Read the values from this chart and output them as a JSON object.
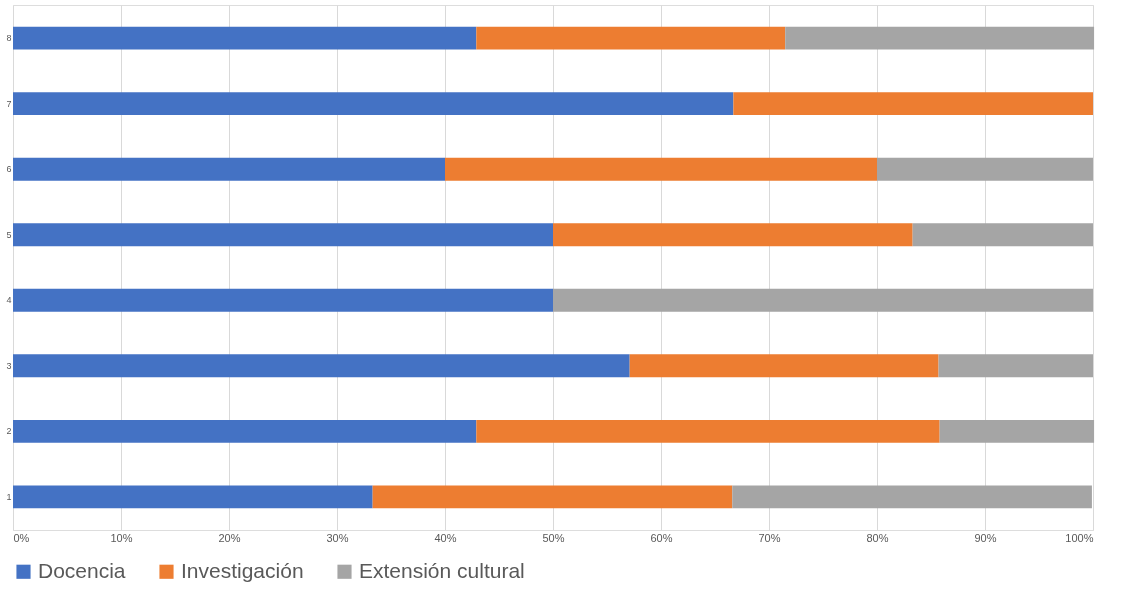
{
  "chart_data": {
    "type": "bar",
    "orientation": "horizontal",
    "stacked": true,
    "categories": [
      "8",
      "7",
      "6",
      "5",
      "4",
      "3",
      "2",
      "1"
    ],
    "series": [
      {
        "name": "Docencia",
        "color": "#4472c4",
        "values": [
          42.9,
          66.7,
          40,
          50,
          50,
          57.1,
          42.9,
          33.3
        ]
      },
      {
        "name": "Investigación",
        "color": "#ed7d31",
        "values": [
          28.6,
          33.3,
          40,
          33.3,
          0,
          28.6,
          42.9,
          33.3
        ]
      },
      {
        "name": "Extensión cultural",
        "color": "#a5a5a5",
        "values": [
          28.6,
          0,
          20,
          16.7,
          50,
          14.3,
          14.3,
          33.3
        ]
      }
    ],
    "xlim": [
      0,
      100
    ],
    "xticks": [
      {
        "value": 0,
        "label": "0%"
      },
      {
        "value": 10,
        "label": "10%"
      },
      {
        "value": 20,
        "label": "20%"
      },
      {
        "value": 30,
        "label": "30%"
      },
      {
        "value": 40,
        "label": "40%"
      },
      {
        "value": 50,
        "label": "50%"
      },
      {
        "value": 60,
        "label": "60%"
      },
      {
        "value": 70,
        "label": "70%"
      },
      {
        "value": 80,
        "label": "80%"
      },
      {
        "value": 90,
        "label": "90%"
      },
      {
        "value": 100,
        "label": "100%"
      }
    ],
    "grid": "x",
    "legend": "bottom"
  }
}
